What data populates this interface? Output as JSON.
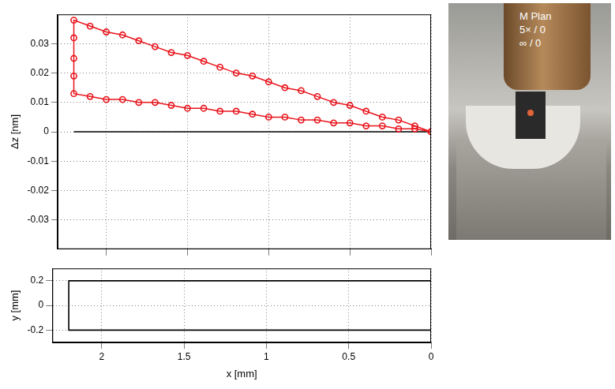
{
  "chart_data": [
    {
      "type": "line",
      "ylabel": "Δz [nm]",
      "x": [
        0,
        0.1,
        0.2,
        0.3,
        0.4,
        0.5,
        0.6,
        0.7,
        0.8,
        0.9,
        1.0,
        1.1,
        1.2,
        1.3,
        1.4,
        1.5,
        1.6,
        1.7,
        1.8,
        1.9,
        2.0,
        2.1,
        2.2,
        2.2,
        2.2,
        2.2,
        2.2,
        2.1,
        2.0,
        1.9,
        1.8,
        1.7,
        1.6,
        1.5,
        1.4,
        1.3,
        1.2,
        1.1,
        1.0,
        0.9,
        0.8,
        0.7,
        0.6,
        0.5,
        0.4,
        0.3,
        0.2,
        0.1,
        0
      ],
      "series": [
        {
          "color": "#e8141c",
          "marker": "circle",
          "line_style": "solid",
          "values": [
            0,
            0.001,
            0.001,
            0.002,
            0.002,
            0.003,
            0.003,
            0.004,
            0.004,
            0.005,
            0.005,
            0.006,
            0.007,
            0.007,
            0.008,
            0.008,
            0.009,
            0.01,
            0.01,
            0.011,
            0.011,
            0.012,
            0.013,
            0.019,
            0.025,
            0.032,
            0.038,
            0.036,
            0.034,
            0.033,
            0.031,
            0.029,
            0.027,
            0.026,
            0.024,
            0.022,
            0.02,
            0.019,
            0.017,
            0.015,
            0.014,
            0.012,
            0.01,
            0.009,
            0.007,
            0.005,
            0.004,
            0.002,
            0
          ]
        },
        {
          "color": "#000000",
          "marker": "none",
          "line_style": "solid",
          "values": [
            0,
            0,
            0,
            0,
            0,
            0,
            0,
            0,
            0,
            0,
            0,
            0,
            0,
            0,
            0,
            0,
            0,
            0,
            0,
            0,
            0,
            0,
            0,
            0,
            0,
            0,
            0,
            0,
            0,
            0,
            0,
            0,
            0,
            0,
            0,
            0,
            0,
            0,
            0,
            0,
            0,
            0,
            0,
            0,
            0,
            0,
            0,
            0,
            0
          ]
        }
      ],
      "xlim": [
        0,
        2.3
      ],
      "xticks": [
        0,
        0.5,
        1,
        1.5,
        2
      ],
      "ylim": [
        -0.04,
        0.04
      ],
      "yticks": [
        -0.03,
        -0.02,
        -0.01,
        0,
        0.01,
        0.02,
        0.03
      ],
      "grid": true,
      "tick_labels": "y"
    },
    {
      "type": "line",
      "xlabel": "x [mm]",
      "ylabel": "y [mm]",
      "x": [
        0,
        0.1,
        0.2,
        0.3,
        0.4,
        0.5,
        0.6,
        0.7,
        0.8,
        0.9,
        1.0,
        1.1,
        1.2,
        1.3,
        1.4,
        1.5,
        1.6,
        1.7,
        1.8,
        1.9,
        2.0,
        2.1,
        2.2,
        2.2,
        2.2,
        2.2,
        2.2,
        2.1,
        2.0,
        1.9,
        1.8,
        1.7,
        1.6,
        1.5,
        1.4,
        1.3,
        1.2,
        1.1,
        1.0,
        0.9,
        0.8,
        0.7,
        0.6,
        0.5,
        0.4,
        0.3,
        0.2,
        0.1,
        0
      ],
      "series": [
        {
          "color": "#000000",
          "marker": "none",
          "line_style": "solid",
          "values": [
            -0.2,
            -0.2,
            -0.2,
            -0.2,
            -0.2,
            -0.2,
            -0.2,
            -0.2,
            -0.2,
            -0.2,
            -0.2,
            -0.2,
            -0.2,
            -0.2,
            -0.2,
            -0.2,
            -0.2,
            -0.2,
            -0.2,
            -0.2,
            -0.2,
            -0.2,
            -0.2,
            -0.1,
            0,
            0.1,
            0.2,
            0.2,
            0.2,
            0.2,
            0.2,
            0.2,
            0.2,
            0.2,
            0.2,
            0.2,
            0.2,
            0.2,
            0.2,
            0.2,
            0.2,
            0.2,
            0.2,
            0.2,
            0.2,
            0.2,
            0.2,
            0.2,
            0.2
          ]
        }
      ],
      "xlim": [
        0,
        2.3
      ],
      "xticks": [
        0,
        0.5,
        1,
        1.5,
        2
      ],
      "ylim": [
        -0.3,
        0.3
      ],
      "yticks": [
        -0.2,
        0,
        0.2
      ],
      "grid": true
    }
  ],
  "inset": {
    "texts": [
      "M Plan",
      "5× / 0",
      "∞ / 0"
    ]
  }
}
